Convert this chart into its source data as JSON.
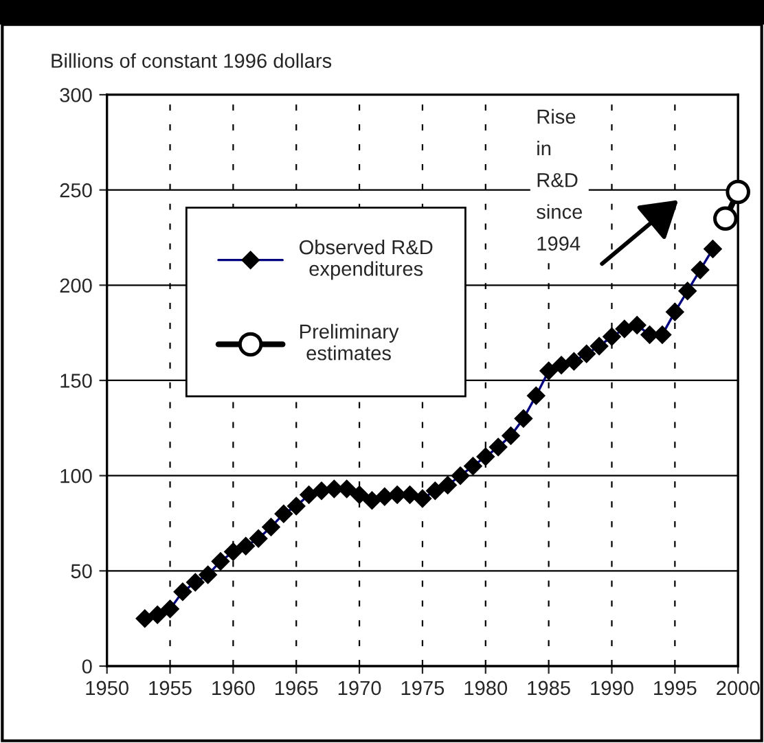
{
  "chart_data": {
    "type": "line",
    "ylabel": "Billions of constant 1996 dollars",
    "xlim": [
      1950,
      2000
    ],
    "xticks": [
      1950,
      1955,
      1960,
      1965,
      1970,
      1975,
      1980,
      1985,
      1990,
      1995,
      2000
    ],
    "ylim": [
      0,
      300
    ],
    "yticks": [
      0,
      50,
      100,
      150,
      200,
      250,
      300
    ],
    "grid": true,
    "legend": "top left",
    "series": [
      {
        "name": "Observed R&D expenditures",
        "color": "#000080",
        "marker": "diamond",
        "x": [
          1953,
          1954,
          1955,
          1956,
          1957,
          1958,
          1959,
          1960,
          1961,
          1962,
          1963,
          1964,
          1965,
          1966,
          1967,
          1968,
          1969,
          1970,
          1971,
          1972,
          1973,
          1974,
          1975,
          1976,
          1977,
          1978,
          1979,
          1980,
          1981,
          1982,
          1983,
          1984,
          1985,
          1986,
          1987,
          1988,
          1989,
          1990,
          1991,
          1992,
          1993,
          1994,
          1995,
          1996,
          1997,
          1998
        ],
        "values": [
          25,
          27,
          30,
          39,
          44,
          48,
          55,
          60,
          63,
          67,
          73,
          80,
          84,
          90,
          92,
          93,
          93,
          90,
          87,
          89,
          90,
          90,
          88,
          92,
          95,
          100,
          105,
          110,
          115,
          121,
          130,
          142,
          155,
          158,
          160,
          164,
          168,
          173,
          177,
          179,
          174,
          174,
          186,
          197,
          208,
          219
        ]
      },
      {
        "name": "Preliminary estimates",
        "color": "#000000",
        "marker": "circle",
        "x": [
          1999,
          2000
        ],
        "values": [
          235,
          249
        ]
      }
    ],
    "annotations": [
      "Rise in R&D since 1994"
    ]
  }
}
